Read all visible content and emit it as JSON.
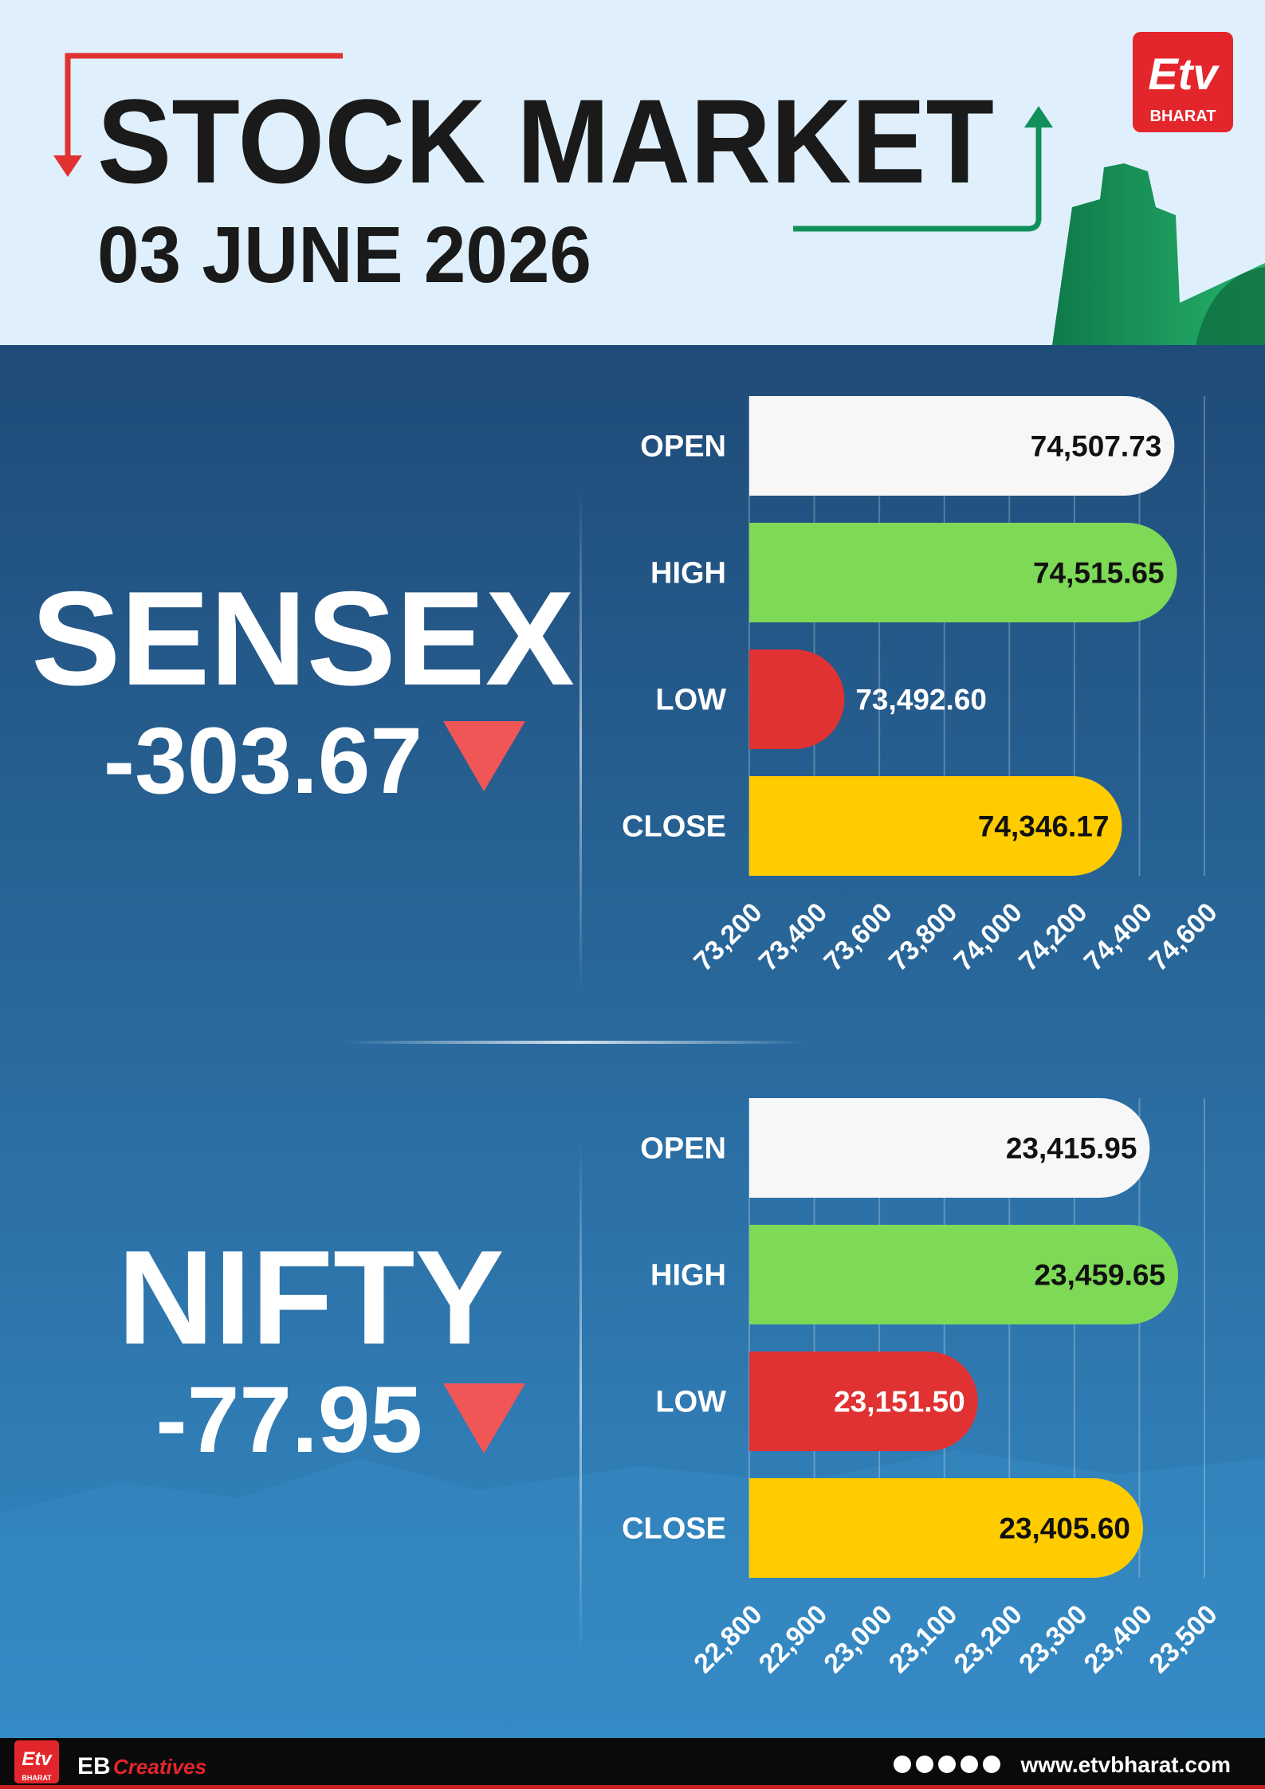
{
  "header": {
    "title": "STOCK MARKET",
    "date": "03 JUNE 2026",
    "logo_mark": "Etv",
    "logo_text": "BHARAT"
  },
  "chart_data": [
    {
      "type": "bar",
      "orientation": "horizontal",
      "title": "SENSEX",
      "annotation": "-303.67",
      "categories": [
        "OPEN",
        "HIGH",
        "LOW",
        "CLOSE"
      ],
      "values": [
        74507.73,
        74515.65,
        73492.6,
        74346.17
      ],
      "value_labels": [
        "74,507.73",
        "74,515.65",
        "73,492.60",
        "74,346.17"
      ],
      "colors": [
        "#f7f7f7",
        "#7ed957",
        "#e03232",
        "#ffcc00"
      ],
      "xlim": [
        73200,
        74600
      ],
      "xticks": [
        {
          "value": 73200,
          "label": "73,200"
        },
        {
          "value": 73400,
          "label": "73,400"
        },
        {
          "value": 73600,
          "label": "73,600"
        },
        {
          "value": 73800,
          "label": "73,800"
        },
        {
          "value": 74000,
          "label": "74,000"
        },
        {
          "value": 74200,
          "label": "74,200"
        },
        {
          "value": 74400,
          "label": "74,400"
        },
        {
          "value": 74600,
          "label": "74,600"
        }
      ],
      "grid": true
    },
    {
      "type": "bar",
      "orientation": "horizontal",
      "title": "NIFTY",
      "annotation": "-77.95",
      "categories": [
        "OPEN",
        "HIGH",
        "LOW",
        "CLOSE"
      ],
      "values": [
        23415.95,
        23459.65,
        23151.5,
        23405.6
      ],
      "value_labels": [
        "23,415.95",
        "23,459.65",
        "23,151.50",
        "23,405.60"
      ],
      "colors": [
        "#f7f7f7",
        "#7ed957",
        "#e03232",
        "#ffcc00"
      ],
      "xlim": [
        22800,
        23500
      ],
      "xticks": [
        {
          "value": 22800,
          "label": "22,800"
        },
        {
          "value": 22900,
          "label": "22,900"
        },
        {
          "value": 23000,
          "label": "23,000"
        },
        {
          "value": 23100,
          "label": "23,100"
        },
        {
          "value": 23200,
          "label": "23,200"
        },
        {
          "value": 23300,
          "label": "23,300"
        },
        {
          "value": 23400,
          "label": "23,400"
        },
        {
          "value": 23500,
          "label": "23,500"
        }
      ],
      "grid": true
    }
  ],
  "footer": {
    "brand": "EB",
    "brand_script": "Creatives",
    "url": "www.etvbharat.com",
    "logo_text": "BHARAT"
  }
}
